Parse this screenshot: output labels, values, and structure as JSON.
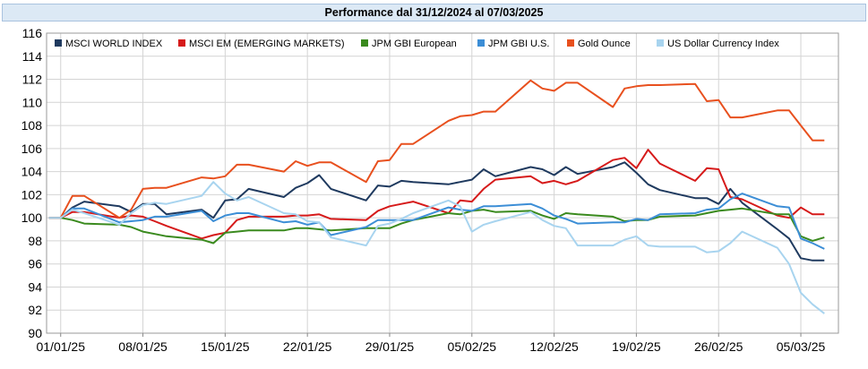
{
  "chart_data": {
    "type": "line",
    "title": "Performance dal 31/12/2024 al 07/03/2025",
    "xlabel": "",
    "ylabel": "",
    "ylim": [
      90,
      116
    ],
    "yticks": [
      90,
      92,
      94,
      96,
      98,
      100,
      102,
      104,
      106,
      108,
      110,
      112,
      114,
      116
    ],
    "xtick_labels": [
      "01/01/25",
      "08/01/25",
      "15/01/25",
      "22/01/25",
      "29/01/25",
      "05/02/25",
      "12/02/25",
      "19/02/25",
      "26/02/25",
      "05/03/25"
    ],
    "xtick_positions": [
      1,
      8,
      15,
      22,
      29,
      36,
      43,
      50,
      57,
      64
    ],
    "x_range": [
      -0.2,
      67.2
    ],
    "grid": true,
    "legend": "top-left",
    "series": [
      {
        "name": "MSCI WORLD INDEX",
        "color": "#1f3a5f",
        "x": [
          0,
          1,
          2,
          3,
          6,
          7,
          8,
          9,
          10,
          13,
          14,
          15,
          16,
          17,
          20,
          21,
          22,
          23,
          24,
          27,
          28,
          29,
          30,
          31,
          34,
          35,
          36,
          37,
          38,
          41,
          42,
          43,
          44,
          45,
          48,
          49,
          50,
          51,
          52,
          55,
          56,
          57,
          58,
          59,
          62,
          63,
          64,
          65,
          66
        ],
        "y": [
          100,
          100,
          100.9,
          101.4,
          101,
          100.5,
          101.2,
          101.2,
          100.3,
          100.7,
          100,
          101.5,
          101.6,
          102.5,
          101.8,
          102.6,
          103,
          103.7,
          102.5,
          101.5,
          102.8,
          102.7,
          103.2,
          103.1,
          102.9,
          103.1,
          103.3,
          104.2,
          103.6,
          104.4,
          104.2,
          103.7,
          104.4,
          103.8,
          104.4,
          104.8,
          103.9,
          102.9,
          102.4,
          101.7,
          101.7,
          101.2,
          102.5,
          101.3,
          99,
          98.2,
          96.5,
          96.3,
          96.3
        ]
      },
      {
        "name": "MSCI EM (EMERGING MARKETS)",
        "color": "#d61a1a",
        "x": [
          0,
          1,
          2,
          3,
          6,
          7,
          8,
          9,
          10,
          13,
          14,
          15,
          16,
          17,
          20,
          21,
          22,
          23,
          24,
          27,
          28,
          29,
          30,
          31,
          34,
          35,
          36,
          37,
          38,
          41,
          42,
          43,
          44,
          45,
          48,
          49,
          50,
          51,
          52,
          55,
          56,
          57,
          58,
          59,
          62,
          63,
          64,
          65,
          66
        ],
        "y": [
          100,
          100,
          100.5,
          100.5,
          100,
          100.2,
          100.1,
          99.7,
          99.3,
          98.2,
          98.5,
          98.7,
          99.8,
          100.1,
          100.1,
          100.2,
          100.2,
          100.3,
          99.9,
          99.8,
          100.6,
          101,
          101.2,
          101.4,
          100.4,
          101.5,
          101.4,
          102.5,
          103.3,
          103.6,
          103,
          103.2,
          102.9,
          103.2,
          105,
          105.2,
          104.3,
          105.9,
          104.7,
          103.2,
          104.3,
          104.2,
          101.8,
          101.6,
          100.2,
          100,
          100.9,
          100.3,
          100.3
        ]
      },
      {
        "name": "JPM GBI European",
        "color": "#3a8a1e",
        "x": [
          0,
          1,
          2,
          3,
          6,
          7,
          8,
          9,
          10,
          13,
          14,
          15,
          16,
          17,
          20,
          21,
          22,
          23,
          24,
          27,
          28,
          29,
          30,
          31,
          34,
          35,
          36,
          37,
          38,
          41,
          42,
          43,
          44,
          45,
          48,
          49,
          50,
          51,
          52,
          55,
          56,
          57,
          58,
          59,
          62,
          63,
          64,
          65,
          66
        ],
        "y": [
          100,
          100,
          99.8,
          99.5,
          99.4,
          99.2,
          98.8,
          98.6,
          98.4,
          98.1,
          97.8,
          98.7,
          98.8,
          98.9,
          98.9,
          99.1,
          99.1,
          99,
          98.9,
          99.1,
          99.1,
          99.1,
          99.5,
          99.8,
          100.4,
          100.3,
          100.6,
          100.7,
          100.5,
          100.6,
          100.2,
          99.9,
          100.4,
          100.3,
          100.1,
          99.7,
          99.8,
          99.8,
          100.1,
          100.2,
          100.4,
          100.6,
          100.7,
          100.8,
          100.3,
          100.3,
          98.4,
          98,
          98.3
        ]
      },
      {
        "name": "JPM GBI U.S.",
        "color": "#3c8ed6",
        "x": [
          0,
          1,
          2,
          3,
          6,
          7,
          8,
          9,
          10,
          13,
          14,
          15,
          16,
          17,
          20,
          21,
          22,
          23,
          24,
          27,
          28,
          29,
          30,
          31,
          34,
          35,
          36,
          37,
          38,
          41,
          42,
          43,
          44,
          45,
          48,
          49,
          50,
          51,
          52,
          55,
          56,
          57,
          58,
          59,
          62,
          63,
          64,
          65,
          66
        ],
        "y": [
          100,
          100,
          100.8,
          100.8,
          99.6,
          99.7,
          99.8,
          100.1,
          100.1,
          100.6,
          99.7,
          100.2,
          100.4,
          100.4,
          99.6,
          99.7,
          99.4,
          99.6,
          98.5,
          99.2,
          99.8,
          99.8,
          99.8,
          99.8,
          100.9,
          100.7,
          100.6,
          101,
          101,
          101.2,
          100.8,
          100.2,
          99.9,
          99.5,
          99.6,
          99.6,
          99.9,
          99.8,
          100.3,
          100.4,
          100.7,
          100.8,
          101.6,
          102.1,
          101,
          100.9,
          98.2,
          97.8,
          97.3
        ]
      },
      {
        "name": "Gold Ounce",
        "color": "#e8501e",
        "x": [
          0,
          1,
          2,
          3,
          6,
          7,
          8,
          9,
          10,
          13,
          14,
          15,
          16,
          17,
          20,
          21,
          22,
          23,
          24,
          27,
          28,
          29,
          30,
          31,
          34,
          35,
          36,
          37,
          38,
          41,
          42,
          43,
          44,
          45,
          48,
          49,
          50,
          51,
          52,
          55,
          56,
          57,
          58,
          59,
          62,
          63,
          64,
          65,
          66
        ],
        "y": [
          100,
          100,
          101.9,
          101.9,
          100,
          100.7,
          102.5,
          102.6,
          102.6,
          103.5,
          103.4,
          103.6,
          104.6,
          104.6,
          104,
          104.9,
          104.5,
          104.8,
          104.8,
          103.1,
          104.9,
          105,
          106.4,
          106.4,
          108.4,
          108.8,
          108.9,
          109.2,
          109.2,
          111.9,
          111.2,
          111,
          111.7,
          111.7,
          109.6,
          111.2,
          111.4,
          111.5,
          111.5,
          111.6,
          110.1,
          110.2,
          108.7,
          108.7,
          109.3,
          109.3,
          108,
          106.7,
          106.7
        ]
      },
      {
        "name": "US Dollar Currency Index",
        "color": "#a8d4ef",
        "x": [
          0,
          1,
          2,
          3,
          6,
          7,
          8,
          9,
          10,
          13,
          14,
          15,
          16,
          17,
          20,
          21,
          22,
          23,
          24,
          27,
          28,
          29,
          30,
          31,
          34,
          35,
          36,
          37,
          38,
          41,
          42,
          43,
          44,
          45,
          48,
          49,
          50,
          51,
          52,
          55,
          56,
          57,
          58,
          59,
          62,
          63,
          64,
          65,
          66
        ],
        "y": [
          100,
          100,
          100.7,
          100.4,
          99.4,
          100.4,
          101.1,
          101.3,
          101.2,
          101.9,
          103.1,
          102.1,
          101.5,
          101.8,
          100.4,
          100.3,
          99.7,
          99.6,
          98.3,
          97.6,
          99.3,
          99.5,
          99.9,
          100.4,
          101.5,
          101,
          98.8,
          99.4,
          99.7,
          100.5,
          99.8,
          99.3,
          99.1,
          97.6,
          97.6,
          98.1,
          98.4,
          97.6,
          97.5,
          97.5,
          97,
          97.1,
          97.8,
          98.8,
          97.4,
          96,
          93.5,
          92.5,
          91.7
        ]
      }
    ]
  }
}
